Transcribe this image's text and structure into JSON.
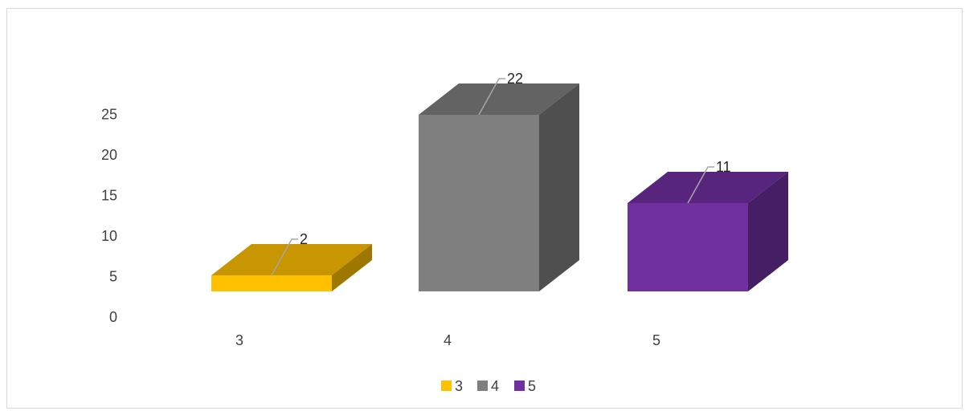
{
  "chart_data": {
    "type": "bar",
    "variant": "3d-column",
    "title": "",
    "xlabel": "",
    "ylabel": "",
    "categories": [
      "3",
      "4",
      "5"
    ],
    "series": [
      {
        "name": "3",
        "values": [
          2,
          null,
          null
        ],
        "color": "#ffc000"
      },
      {
        "name": "4",
        "values": [
          null,
          22,
          null
        ],
        "color": "#7f7f7f"
      },
      {
        "name": "5",
        "values": [
          null,
          null,
          11
        ],
        "color": "#7030a0"
      }
    ],
    "values": [
      2,
      22,
      11
    ],
    "data_labels": [
      "2",
      "22",
      "11"
    ],
    "y_ticks": [
      "0",
      "5",
      "10",
      "15",
      "20",
      "25"
    ],
    "ylim": [
      0,
      25
    ],
    "grid": false,
    "legend": {
      "position": "bottom",
      "entries": [
        "3",
        "4",
        "5"
      ]
    }
  }
}
